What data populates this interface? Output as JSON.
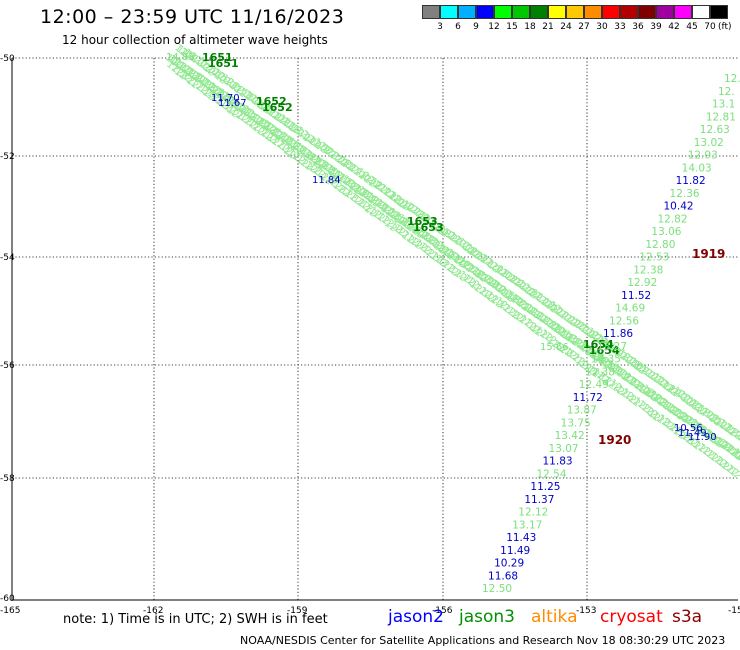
{
  "header": {
    "title": "12:00 – 23:59 UTC 11/16/2023",
    "subtitle": "12 hour collection of altimeter wave heights"
  },
  "colorbar": {
    "colors": [
      "#808080",
      "#00ffff",
      "#00b0ff",
      "#0000ff",
      "#00ff00",
      "#00c800",
      "#008000",
      "#ffff00",
      "#ffc800",
      "#ff8c00",
      "#ff0000",
      "#b40000",
      "#800000",
      "#a000a0",
      "#ff00ff",
      "#ffffff",
      "#000000"
    ],
    "labels": [
      "3",
      "6",
      "9",
      "12",
      "15",
      "18",
      "21",
      "24",
      "27",
      "30",
      "33",
      "36",
      "39",
      "42",
      "45",
      "70"
    ],
    "unit": "(ft)"
  },
  "axes": {
    "y_ticks": [
      "-50",
      "-52",
      "-54",
      "-56",
      "-58",
      "-60"
    ],
    "x_ticks": [
      "-165",
      "-162",
      "-159",
      "-156",
      "-153",
      "-15"
    ],
    "lat_range": [
      -60,
      -50
    ],
    "lon_range": [
      -165,
      -150
    ]
  },
  "passes": {
    "pass1_times": [
      {
        "label": "1651",
        "color": "#008000"
      },
      {
        "label": "1652",
        "color": "#008000"
      },
      {
        "label": "1653",
        "color": "#008000"
      },
      {
        "label": "1654",
        "color": "#008000"
      }
    ],
    "pass2_times": [
      {
        "label": "1919",
        "color": "#800000"
      },
      {
        "label": "1920",
        "color": "#800000"
      }
    ],
    "pass1_values": [
      {
        "t": "14.83",
        "c": "#7be07b"
      },
      {
        "t": "11.70",
        "c": "#0000c8"
      },
      {
        "t": "11.67",
        "c": "#0000c8"
      },
      {
        "t": "11.84",
        "c": "#0000c8"
      },
      {
        "t": "15.66",
        "c": "#7be07b"
      },
      {
        "t": "10.56",
        "c": "#0000c8"
      },
      {
        "t": "11.49",
        "c": "#0000c8"
      },
      {
        "t": "11.90",
        "c": "#0000c8"
      }
    ],
    "pass2_values": [
      {
        "t": "12.",
        "c": "#7be07b"
      },
      {
        "t": "12.",
        "c": "#7be07b"
      },
      {
        "t": "13.1",
        "c": "#7be07b"
      },
      {
        "t": "12.81",
        "c": "#7be07b"
      },
      {
        "t": "12.63",
        "c": "#7be07b"
      },
      {
        "t": "13.02",
        "c": "#7be07b"
      },
      {
        "t": "12.93",
        "c": "#7be07b"
      },
      {
        "t": "14.03",
        "c": "#7be07b"
      },
      {
        "t": "11.82",
        "c": "#0000c8"
      },
      {
        "t": "12.36",
        "c": "#7be07b"
      },
      {
        "t": "10.42",
        "c": "#0000c8"
      },
      {
        "t": "12.82",
        "c": "#7be07b"
      },
      {
        "t": "13.06",
        "c": "#7be07b"
      },
      {
        "t": "12.80",
        "c": "#7be07b"
      },
      {
        "t": "12.53",
        "c": "#7be07b"
      },
      {
        "t": "12.38",
        "c": "#7be07b"
      },
      {
        "t": "12.92",
        "c": "#7be07b"
      },
      {
        "t": "11.52",
        "c": "#0000c8"
      },
      {
        "t": "14.69",
        "c": "#7be07b"
      },
      {
        "t": "12.56",
        "c": "#7be07b"
      },
      {
        "t": "11.86",
        "c": "#0000c8"
      },
      {
        "t": "13.27",
        "c": "#7be07b"
      },
      {
        "t": "14.35",
        "c": "#7be07b"
      },
      {
        "t": "12.38",
        "c": "#7be07b"
      },
      {
        "t": "12.49",
        "c": "#7be07b"
      },
      {
        "t": "11.72",
        "c": "#0000c8"
      },
      {
        "t": "13.87",
        "c": "#7be07b"
      },
      {
        "t": "13.75",
        "c": "#7be07b"
      },
      {
        "t": "13.42",
        "c": "#7be07b"
      },
      {
        "t": "13.07",
        "c": "#7be07b"
      },
      {
        "t": "11.83",
        "c": "#0000c8"
      },
      {
        "t": "12.54",
        "c": "#7be07b"
      },
      {
        "t": "11.25",
        "c": "#0000c8"
      },
      {
        "t": "11.37",
        "c": "#0000c8"
      },
      {
        "t": "12.12",
        "c": "#7be07b"
      },
      {
        "t": "13.17",
        "c": "#7be07b"
      },
      {
        "t": "11.43",
        "c": "#0000c8"
      },
      {
        "t": "11.49",
        "c": "#0000c8"
      },
      {
        "t": "10.29",
        "c": "#0000c8"
      },
      {
        "t": "11.68",
        "c": "#0000c8"
      },
      {
        "t": "12.50",
        "c": "#7be07b"
      }
    ]
  },
  "note": "note: 1) Time is in UTC; 2) SWH is in feet",
  "satellites": [
    {
      "name": "jason2",
      "color": "#0000ff"
    },
    {
      "name": "jason3",
      "color": "#009000"
    },
    {
      "name": "altika",
      "color": "#ff8c00"
    },
    {
      "name": "cryosat",
      "color": "#ff0000"
    },
    {
      "name": "s3a",
      "color": "#8b0000"
    }
  ],
  "footer": "NOAA/NESDIS Center for Satellite Applications and Research    Nov 18 08:30:29 UTC 2023"
}
